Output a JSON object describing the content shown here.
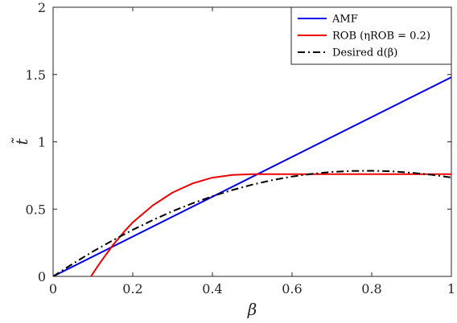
{
  "chart_data": {
    "type": "line",
    "title": "",
    "xlabel": "β",
    "ylabel": "t̃",
    "xlim": [
      0,
      1
    ],
    "ylim": [
      0,
      2
    ],
    "xticks": [
      "0",
      "0.2",
      "0.4",
      "0.6",
      "0.8",
      "1"
    ],
    "yticks": [
      "0",
      "0.5",
      "1",
      "1.5",
      "2"
    ],
    "grid": false,
    "legend_position": "top-right",
    "series": [
      {
        "name": "AMF",
        "color": "#0000ee",
        "style": "solid",
        "x": [
          0,
          1
        ],
        "y": [
          0,
          1.48
        ]
      },
      {
        "name": "ROB (ηROB = 0.2)",
        "color": "#ee0000",
        "style": "solid",
        "x": [
          0.095,
          0.12,
          0.15,
          0.18,
          0.2,
          0.25,
          0.3,
          0.35,
          0.4,
          0.45,
          0.5,
          0.52,
          0.6,
          0.7,
          0.8,
          0.9,
          1.0
        ],
        "y": [
          0,
          0.11,
          0.232,
          0.338,
          0.401,
          0.527,
          0.623,
          0.691,
          0.734,
          0.754,
          0.76,
          0.76,
          0.76,
          0.76,
          0.76,
          0.76,
          0.76
        ]
      },
      {
        "name": "Desired d(β)",
        "color": "#000000",
        "style": "dashdot",
        "x": [
          0,
          0.05,
          0.1,
          0.15,
          0.2,
          0.25,
          0.3,
          0.35,
          0.4,
          0.45,
          0.5,
          0.55,
          0.6,
          0.65,
          0.7,
          0.75,
          0.8,
          0.85,
          0.9,
          0.95,
          1.0
        ],
        "y": [
          0,
          0.095,
          0.185,
          0.268,
          0.346,
          0.418,
          0.484,
          0.543,
          0.596,
          0.642,
          0.682,
          0.715,
          0.742,
          0.762,
          0.776,
          0.783,
          0.785,
          0.781,
          0.77,
          0.755,
          0.735
        ]
      }
    ]
  }
}
